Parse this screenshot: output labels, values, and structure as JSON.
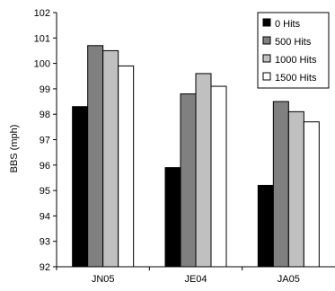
{
  "chart_data": {
    "type": "bar",
    "categories": [
      "JN05",
      "JE04",
      "JA05"
    ],
    "series": [
      {
        "name": "0 Hits",
        "color": "#000000",
        "values": [
          98.3,
          95.9,
          95.2
        ]
      },
      {
        "name": "500 Hits",
        "color": "#808080",
        "values": [
          100.7,
          98.8,
          98.5
        ]
      },
      {
        "name": "1000 Hits",
        "color": "#c0c0c0",
        "values": [
          100.5,
          99.6,
          98.1
        ]
      },
      {
        "name": "1500 Hits",
        "color": "#ffffff",
        "values": [
          99.9,
          99.1,
          97.7
        ]
      }
    ],
    "ylabel": "BBS (mph)",
    "xlabel": "",
    "ylim": [
      92,
      102
    ],
    "yticks": [
      "92",
      "93",
      "94",
      "95",
      "96",
      "97",
      "98",
      "99",
      "100",
      "101",
      "102"
    ],
    "grid": "none",
    "legend_position": "top-right"
  }
}
